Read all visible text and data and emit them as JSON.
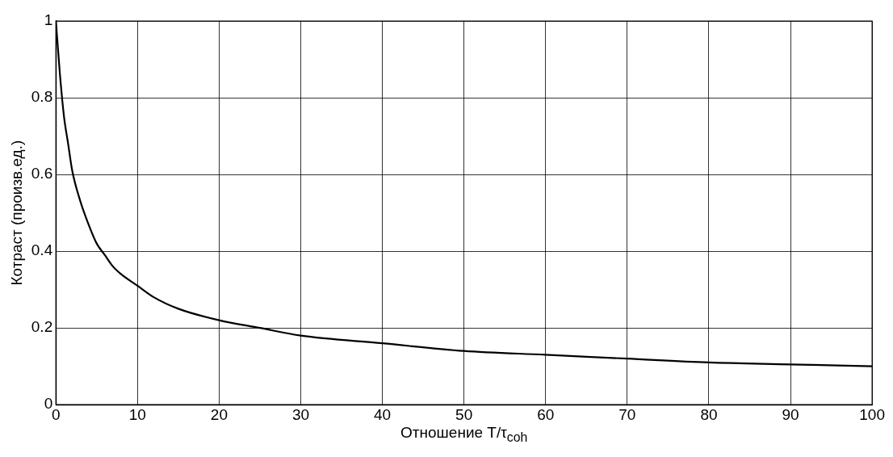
{
  "chart_data": {
    "type": "line",
    "xlabel": "Отношение T/τ$_{coh}$",
    "ylabel": "Котраст (произв.ед.)",
    "x": [
      0,
      0.5,
      1,
      1.5,
      2,
      3,
      4,
      5,
      6,
      7,
      8,
      10,
      12,
      15,
      20,
      25,
      30,
      40,
      50,
      60,
      70,
      80,
      90,
      100
    ],
    "series": [
      {
        "color": "#000000",
        "values": [
          1,
          0.86,
          0.75,
          0.68,
          0.61,
          0.53,
          0.47,
          0.42,
          0.39,
          0.36,
          0.34,
          0.31,
          0.28,
          0.25,
          0.22,
          0.2,
          0.18,
          0.16,
          0.14,
          0.13,
          0.12,
          0.11,
          0.105,
          0.1
        ]
      }
    ],
    "xlim": [
      0,
      100
    ],
    "xticks": [
      0,
      10,
      20,
      30,
      40,
      50,
      60,
      70,
      80,
      90,
      100
    ],
    "ylim": [
      0,
      1
    ],
    "yticks": [
      0,
      0.2,
      0.4,
      0.6,
      0.8,
      1
    ],
    "grid": true,
    "legend": false,
    "marker": "none",
    "line_style": "solid"
  }
}
